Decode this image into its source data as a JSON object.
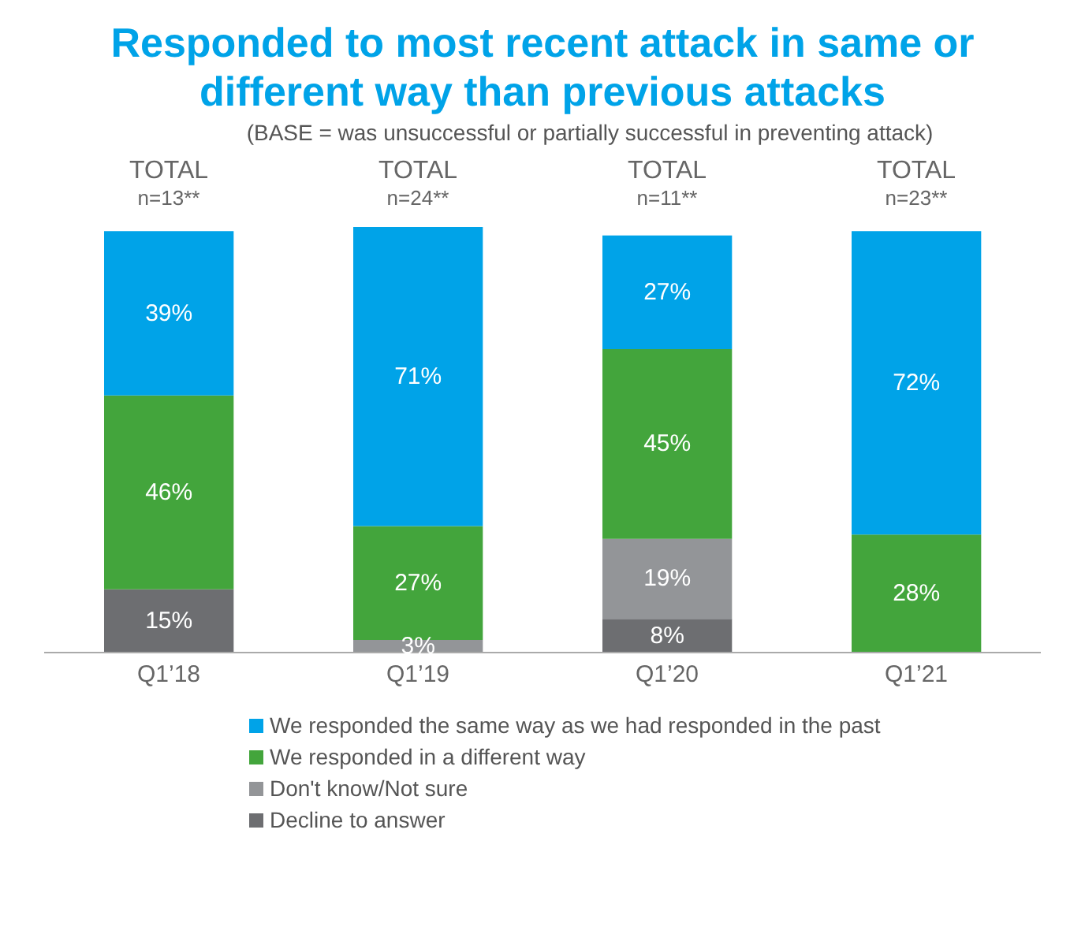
{
  "chart_data": {
    "type": "bar",
    "title": "Responded to most recent attack in same or different way than previous attacks",
    "subtitle": "(BASE = was unsuccessful or partially successful in preventing attack)",
    "categories": [
      "Q1’18",
      "Q1’19",
      "Q1’20",
      "Q1’21"
    ],
    "stacked": true,
    "tick_labels": "x",
    "legend": "bottom",
    "annotations": [
      "TOTAL\nn=13**",
      "TOTAL\nn=24**",
      "TOTAL\nn=11**",
      "TOTAL\nn=23**"
    ],
    "series": [
      {
        "name": "Decline to answer",
        "color": "#6d6e71",
        "values": [
          15,
          null,
          8,
          null
        ],
        "value_labels": [
          "15%",
          null,
          "8%",
          null
        ]
      },
      {
        "name": "Don't know/Not sure",
        "color": "#939598",
        "values": [
          null,
          3,
          19,
          null
        ],
        "value_labels": [
          null,
          "3%",
          "19%",
          null
        ]
      },
      {
        "name": "We responded in a different way",
        "color": "#43a53c",
        "values": [
          46,
          27,
          45,
          28
        ],
        "value_labels": [
          "46%",
          "27%",
          "45%",
          "28%"
        ]
      },
      {
        "name": "We responded the same way as we had responded in the past",
        "color": "#00a3e8",
        "values": [
          39,
          71,
          27,
          72
        ],
        "value_labels": [
          "39%",
          "71%",
          "27%",
          "72%"
        ]
      }
    ]
  }
}
